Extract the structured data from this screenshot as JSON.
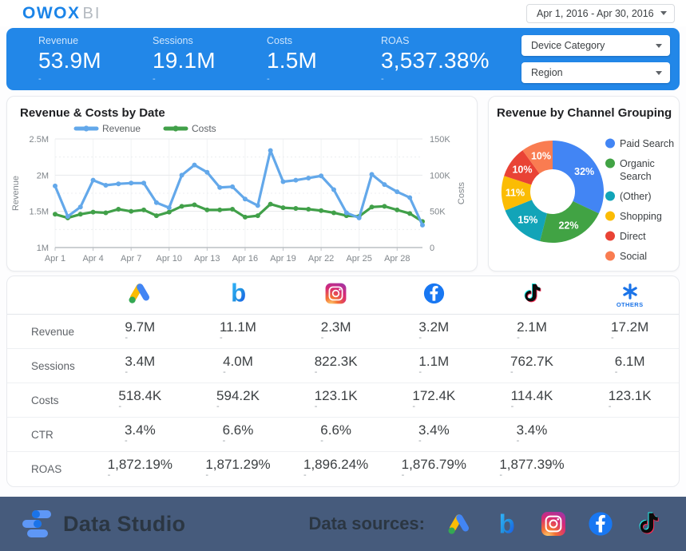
{
  "header": {
    "logo_primary": "OWOX",
    "logo_secondary": "BI",
    "date_range": "Apr 1, 2016 - Apr 30, 2016"
  },
  "dash": "-",
  "kpi_bar": {
    "kpis": [
      {
        "label": "Revenue",
        "value": "53.9M"
      },
      {
        "label": "Sessions",
        "value": "19.1M"
      },
      {
        "label": "Costs",
        "value": "1.5M"
      },
      {
        "label": "ROAS",
        "value": "3,537.38%"
      }
    ],
    "filters": [
      {
        "label": "Device Category"
      },
      {
        "label": "Region"
      }
    ]
  },
  "chart_data": [
    {
      "type": "line",
      "title": "Revenue & Costs by Date",
      "x": [
        "Apr 1",
        "Apr 2",
        "Apr 3",
        "Apr 4",
        "Apr 5",
        "Apr 6",
        "Apr 7",
        "Apr 8",
        "Apr 9",
        "Apr 10",
        "Apr 11",
        "Apr 12",
        "Apr 13",
        "Apr 14",
        "Apr 15",
        "Apr 16",
        "Apr 17",
        "Apr 18",
        "Apr 19",
        "Apr 20",
        "Apr 21",
        "Apr 22",
        "Apr 23",
        "Apr 24",
        "Apr 25",
        "Apr 26",
        "Apr 27",
        "Apr 28",
        "Apr 29",
        "Apr 30"
      ],
      "x_tick_labels": [
        "Apr 1",
        "Apr 4",
        "Apr 7",
        "Apr 10",
        "Apr 13",
        "Apr 16",
        "Apr 19",
        "Apr 22",
        "Apr 25",
        "Apr 28"
      ],
      "series": [
        {
          "name": "Revenue",
          "axis": "left",
          "unit": "millions",
          "color": "#63A8EA",
          "values": [
            1.85,
            1.43,
            1.56,
            1.93,
            1.86,
            1.88,
            1.89,
            1.89,
            1.62,
            1.55,
            2.0,
            2.14,
            2.04,
            1.83,
            1.84,
            1.67,
            1.58,
            2.34,
            1.91,
            1.93,
            1.96,
            1.99,
            1.8,
            1.48,
            1.41,
            2.01,
            1.87,
            1.77,
            1.69,
            1.31
          ]
        },
        {
          "name": "Costs",
          "axis": "right",
          "unit": "thousands",
          "color": "#41A049",
          "values": [
            46,
            41,
            46,
            49,
            48,
            53,
            50,
            52,
            44,
            49,
            57,
            59,
            52,
            52,
            53,
            42,
            44,
            60,
            55,
            54,
            53,
            51,
            48,
            44,
            43,
            56,
            57,
            52,
            47,
            36
          ]
        }
      ],
      "left_axis": {
        "title": "Revenue",
        "tick_values": [
          1,
          1.5,
          2,
          2.5
        ],
        "tick_labels": [
          "1M",
          "1.5M",
          "2M",
          "2.5M"
        ],
        "minor_tick_values": [
          1.25,
          1.75,
          2.25
        ]
      },
      "right_axis": {
        "title": "Costs",
        "tick_values": [
          0,
          50,
          100,
          150
        ],
        "tick_labels": [
          "0",
          "50K",
          "100K",
          "150K"
        ]
      },
      "legend_position": "top",
      "grid": true
    },
    {
      "type": "pie",
      "donut": true,
      "title": "Revenue by Channel Grouping",
      "labels": [
        "Paid Search",
        "Organic Search",
        "(Other)",
        "Shopping",
        "Direct",
        "Social"
      ],
      "values": [
        32,
        22,
        15,
        11,
        10,
        10
      ],
      "value_labels": [
        "32%",
        "22%",
        "15%",
        "11%",
        "10%",
        "10%"
      ],
      "colors": [
        "#4285F4",
        "#41A344",
        "#12A4B8",
        "#FBBC04",
        "#E94335",
        "#F97C51"
      ],
      "legend_position": "right"
    }
  ],
  "table": {
    "columns": [
      {
        "icon": "google-ads"
      },
      {
        "icon": "bing"
      },
      {
        "icon": "instagram"
      },
      {
        "icon": "facebook"
      },
      {
        "icon": "tiktok"
      },
      {
        "icon": "others",
        "label": "OTHERS"
      }
    ],
    "rows": [
      {
        "label": "Revenue",
        "values": [
          "9.7M",
          "11.1M",
          "2.3M",
          "3.2M",
          "2.1M",
          "17.2M"
        ]
      },
      {
        "label": "Sessions",
        "values": [
          "3.4M",
          "4.0M",
          "822.3K",
          "1.1M",
          "762.7K",
          "6.1M"
        ]
      },
      {
        "label": "Costs",
        "values": [
          "518.4K",
          "594.2K",
          "123.1K",
          "172.4K",
          "114.4K",
          "123.1K"
        ]
      },
      {
        "label": "CTR",
        "values": [
          "3.4%",
          "6.6%",
          "6.6%",
          "3.4%",
          "3.4%",
          ""
        ]
      },
      {
        "label": "ROAS",
        "values": [
          "1,872.19%",
          "1,871.29%",
          "1,896.24%",
          "1,876.79%",
          "1,877.39%",
          ""
        ]
      }
    ]
  },
  "footer": {
    "brand": "Data Studio",
    "sources_label": "Data sources:",
    "source_icons": [
      "google-ads",
      "bing",
      "instagram",
      "facebook",
      "tiktok"
    ]
  },
  "colors": {
    "kpi_bar_bg": "#2287E8",
    "footer_bg": "#465B7C",
    "logo_blue": "#1B84E8",
    "others_blue": "#1A73E8"
  }
}
